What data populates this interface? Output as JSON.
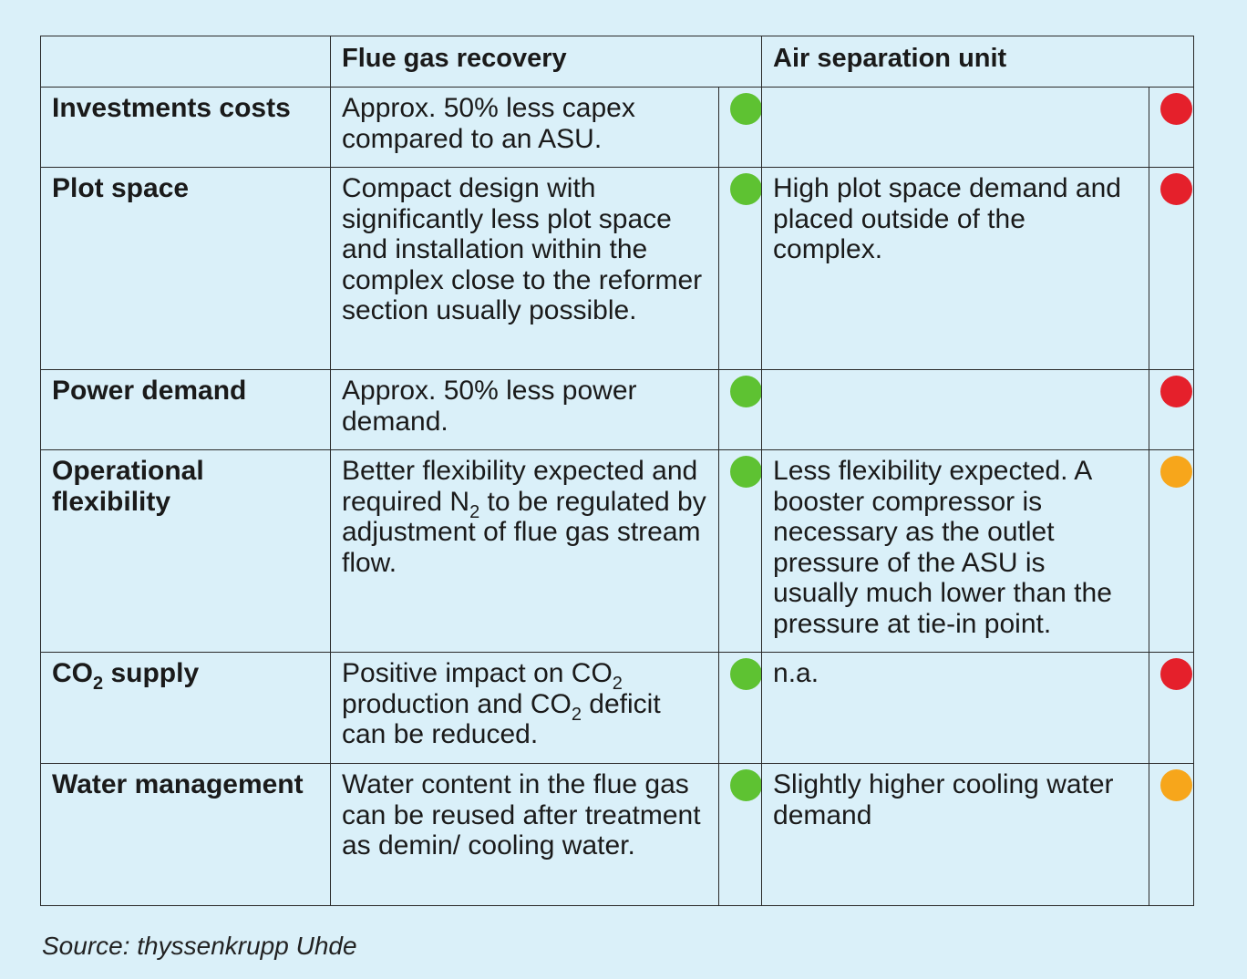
{
  "header": {
    "col1": "Flue gas recovery",
    "col2": "Air separation unit"
  },
  "rows": [
    {
      "label": "Investments costs",
      "fgr": "Approx. 50% less capex compared to an ASU.",
      "fgr_status": "green",
      "asu": "",
      "asu_status": "red"
    },
    {
      "label": "Plot space",
      "fgr": "Compact design with significantly less plot space and installation within the complex close to the reformer section usually possible.",
      "fgr_status": "green",
      "asu": "High plot space demand and placed outside of the complex.",
      "asu_status": "red"
    },
    {
      "label": "Power demand",
      "fgr": "Approx. 50% less power demand.",
      "fgr_status": "green",
      "asu": "",
      "asu_status": "red"
    },
    {
      "label": "Operational flexibility",
      "fgr_pre": "Better flexibility expected and required N",
      "fgr_sub": "2",
      "fgr_post": " to be regulated by adjustment of flue gas stream flow.",
      "fgr_status": "green",
      "asu": "Less flexibility expected. A booster compressor is necessary as the outlet pressure of the ASU is usually much lower than the pressure at tie-in point.",
      "asu_status": "amber"
    },
    {
      "label_pre": "CO",
      "label_sub": "2",
      "label_post": " supply",
      "fgr_a": "Positive impact on CO",
      "fgr_sub1": "2",
      "fgr_b": " production and CO",
      "fgr_sub2": "2",
      "fgr_c": " deficit can be reduced.",
      "fgr_status": "green",
      "asu": "n.a.",
      "asu_status": "red"
    },
    {
      "label": "Water management",
      "fgr": "Water content in the flue gas can be reused after treatment as demin/ cooling water.",
      "fgr_status": "green",
      "asu": "Slightly higher cooling water demand",
      "asu_status": "amber"
    }
  ],
  "status_colors": {
    "green": "#5ec232",
    "red": "#e5202b",
    "amber": "#f7a61b"
  },
  "source": "Source: thyssenkrupp Uhde"
}
